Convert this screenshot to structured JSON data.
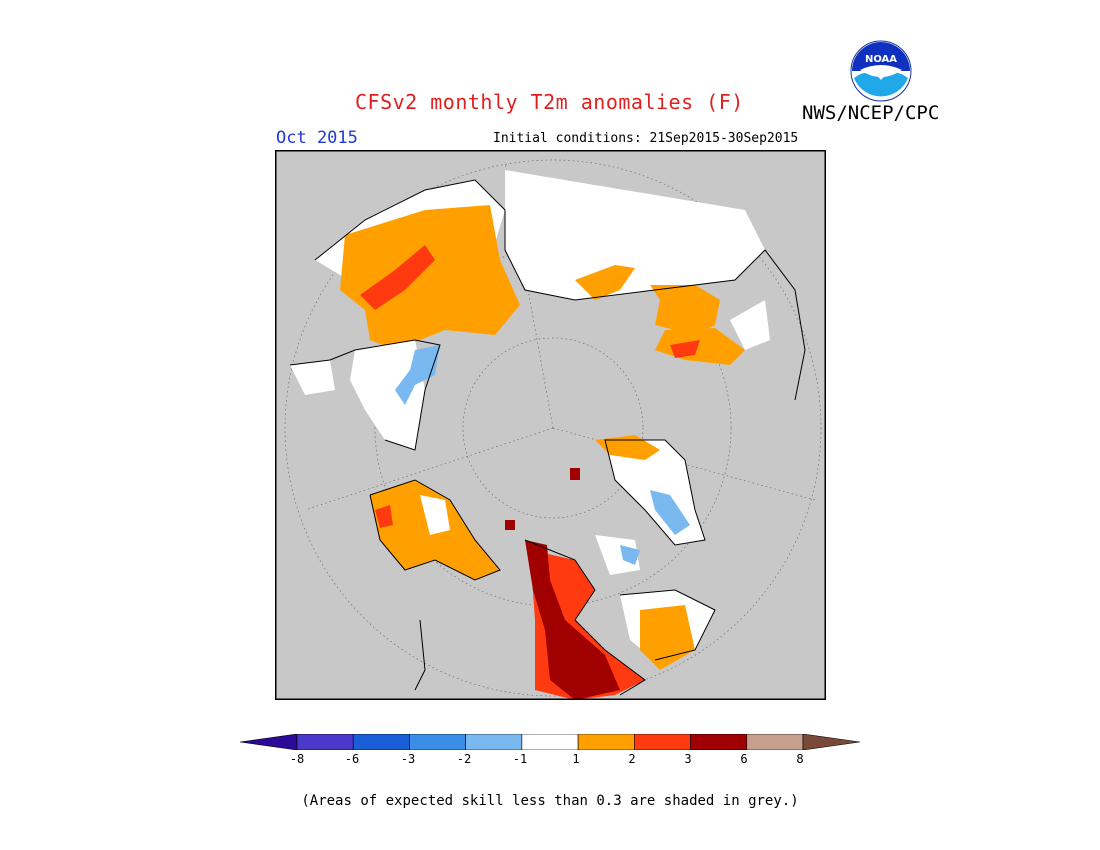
{
  "header": {
    "title": "CFSv2 monthly T2m anomalies (F)",
    "organization": "NWS/NCEP/CPC",
    "logo_text": "NOAA",
    "month": "Oct 2015",
    "initial_conditions": "Initial conditions: 21Sep2015-30Sep2015"
  },
  "colors": {
    "skill_grey": "#c8c8c8",
    "land_outline": "#000000",
    "title_red": "#e02020",
    "month_blue": "#2038d8"
  },
  "legend": {
    "colors": [
      "#2a0a96",
      "#4a38c8",
      "#1a5ed8",
      "#3a8ee8",
      "#7ab8f0",
      "#ffffff",
      "#ffa000",
      "#ff3a10",
      "#a00000",
      "#c8a090",
      "#7a4a38"
    ],
    "tick_labels": [
      "-8",
      "-6",
      "-3",
      "-2",
      "-1",
      "1",
      "2",
      "3",
      "6",
      "8"
    ]
  },
  "footnote": "(Areas of expected skill less than 0.3 are shaded in grey.)"
}
